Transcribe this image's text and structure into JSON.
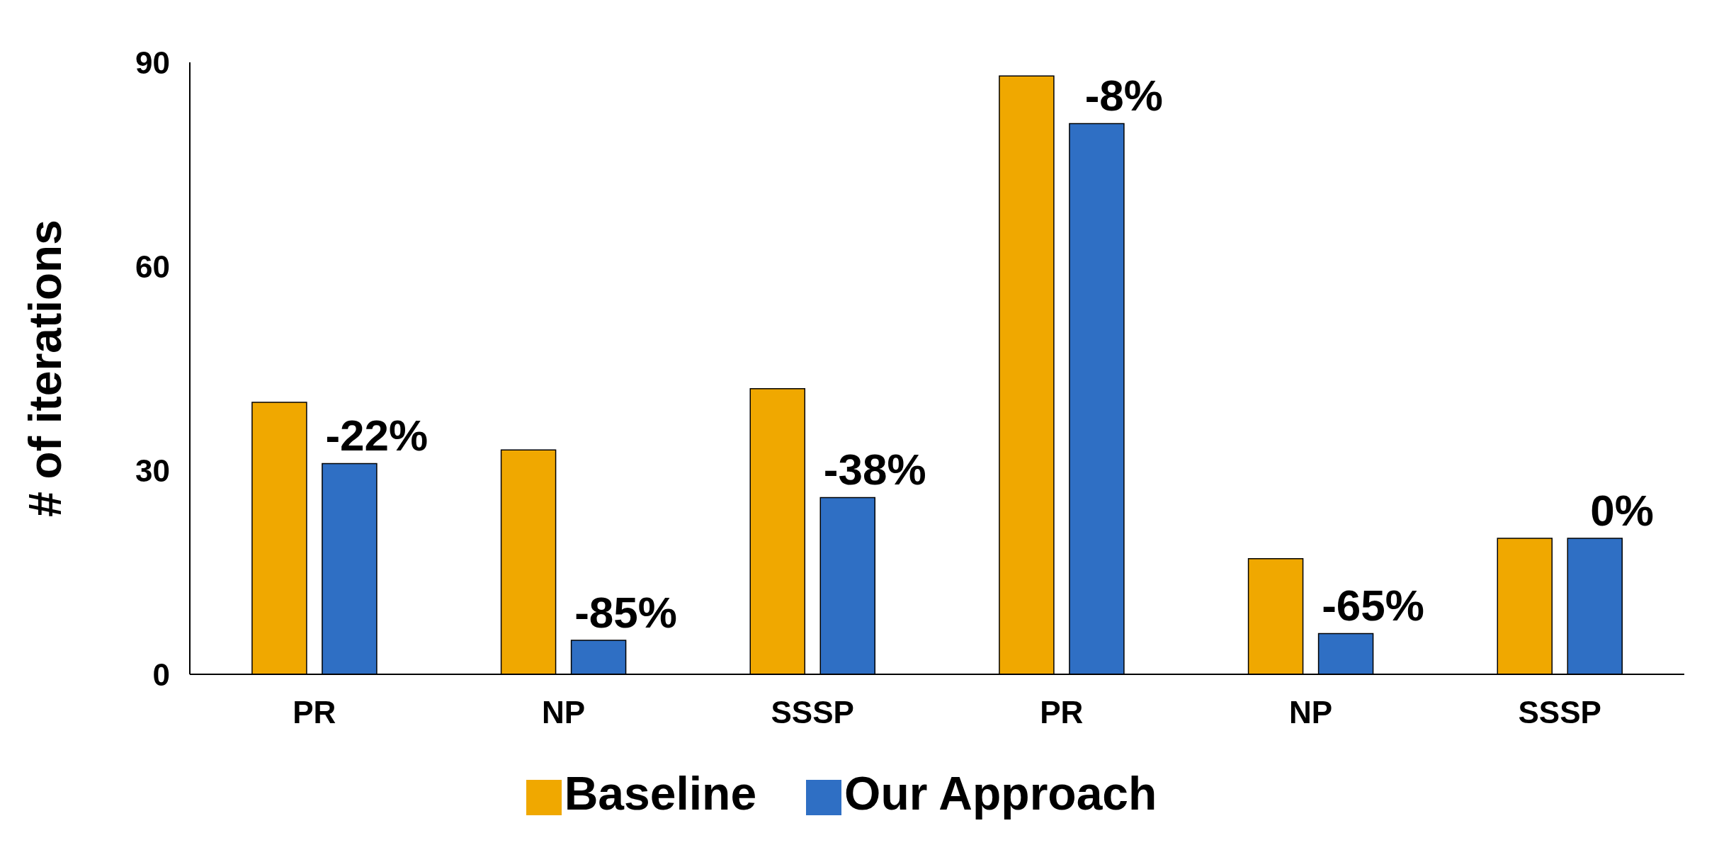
{
  "chart_data": {
    "type": "bar",
    "ylabel": "# of iterations",
    "categories": [
      "PR",
      "NP",
      "SSSP",
      "PR",
      "NP",
      "SSSP"
    ],
    "series": [
      {
        "name": "Baseline",
        "color": "#f0a800",
        "values": [
          40,
          33,
          42,
          88,
          17,
          20
        ]
      },
      {
        "name": "Our Approach",
        "color": "#2f6fc4",
        "values": [
          31,
          5,
          26,
          81,
          6,
          20
        ]
      }
    ],
    "annotations": [
      {
        "text": "-22%",
        "y": 31
      },
      {
        "text": "-85%",
        "y": 5
      },
      {
        "text": "-38%",
        "y": 26
      },
      {
        "text": "-8%",
        "y": 81
      },
      {
        "text": "-65%",
        "y": 6
      },
      {
        "text": "0%",
        "y": 20
      }
    ],
    "ylim": [
      0,
      90
    ],
    "yticks": [
      0,
      30,
      60,
      90
    ],
    "grid": false,
    "legend": "bottom"
  }
}
